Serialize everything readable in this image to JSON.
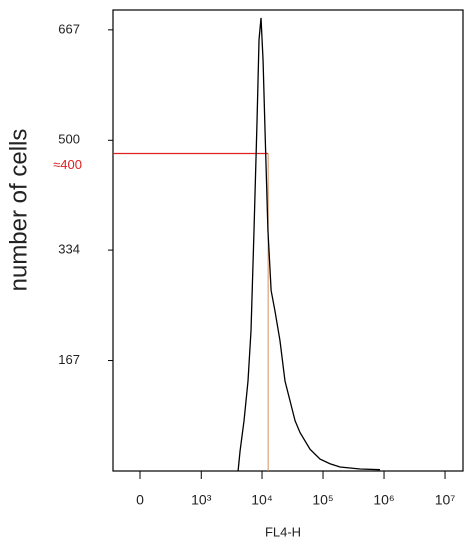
{
  "chart_data": {
    "type": "line",
    "xlabel": "FL4-H",
    "ylabel": "number of cells",
    "xscale": "biexponential",
    "xlim": [
      -241,
      19700000
    ],
    "ylim": [
      0,
      697
    ],
    "xticks": [
      0,
      {
        "value": 1000,
        "label": "10³"
      },
      {
        "value": 10000,
        "label": "10⁴"
      },
      {
        "value": 100000,
        "label": "10⁵"
      },
      {
        "value": 1000000,
        "label": "10⁶"
      },
      {
        "value": 10000000,
        "label": "10⁷"
      }
    ],
    "yticks": [
      167,
      334,
      500,
      667
    ],
    "grid": false,
    "series": [
      {
        "color": "#000000",
        "x": [
          4050,
          4360,
          5070,
          5890,
          6600,
          7390,
          8290,
          8930,
          9630,
          10400,
          11200,
          12500,
          14100,
          16300,
          19700,
          23800,
          28800,
          34800,
          42000,
          61200,
          89300,
          130000,
          190000,
          405000,
          859000
        ],
        "values": [
          0,
          30,
          76,
          136,
          212,
          364,
          530,
          652,
          685,
          621,
          515,
          364,
          273,
          242,
          197,
          136,
          106,
          76,
          58,
          33,
          18,
          11,
          6,
          3,
          2
        ]
      }
    ],
    "annotation": {
      "text": "≈400",
      "x": 12600,
      "y": 480,
      "hcolor": "#e02020",
      "vcolor": "#d09060"
    }
  }
}
